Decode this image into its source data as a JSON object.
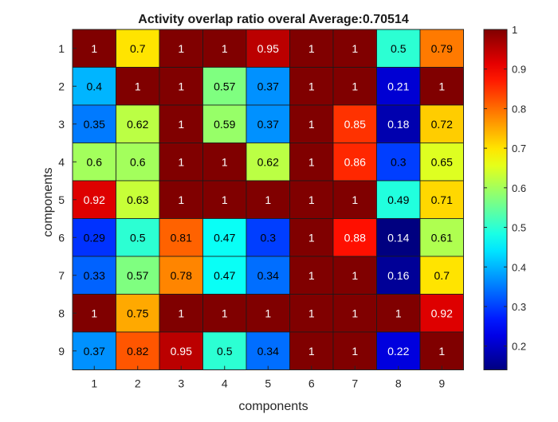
{
  "chart_data": {
    "type": "heatmap",
    "title": "Activity overlap ratio  overal Average:0.70514",
    "xlabel": "components",
    "ylabel": "components",
    "x_categories": [
      "1",
      "2",
      "3",
      "4",
      "5",
      "6",
      "7",
      "8",
      "9"
    ],
    "y_categories": [
      "1",
      "2",
      "3",
      "4",
      "5",
      "6",
      "7",
      "8",
      "9"
    ],
    "values": [
      [
        1,
        0.7,
        1,
        1,
        0.95,
        1,
        1,
        0.5,
        0.79
      ],
      [
        0.4,
        1,
        1,
        0.57,
        0.37,
        1,
        1,
        0.21,
        1
      ],
      [
        0.35,
        0.62,
        1,
        0.59,
        0.37,
        1,
        0.85,
        0.18,
        0.72
      ],
      [
        0.6,
        0.6,
        1,
        1,
        0.62,
        1,
        0.86,
        0.3,
        0.65
      ],
      [
        0.92,
        0.63,
        1,
        1,
        1,
        1,
        1,
        0.49,
        0.71
      ],
      [
        0.29,
        0.5,
        0.81,
        0.47,
        0.3,
        1,
        0.88,
        0.14,
        0.61
      ],
      [
        0.33,
        0.57,
        0.78,
        0.47,
        0.34,
        1,
        1,
        0.16,
        0.7
      ],
      [
        1,
        0.75,
        1,
        1,
        1,
        1,
        1,
        1,
        0.92
      ],
      [
        0.37,
        0.82,
        0.95,
        0.5,
        0.34,
        1,
        1,
        0.22,
        1
      ]
    ],
    "colormap": "jet",
    "color_range": [
      0.14,
      1
    ],
    "colorbar_ticks": [
      "0.2",
      "0.3",
      "0.4",
      "0.5",
      "0.6",
      "0.7",
      "0.8",
      "0.9",
      "1"
    ],
    "colorbar": true,
    "grid": false
  }
}
